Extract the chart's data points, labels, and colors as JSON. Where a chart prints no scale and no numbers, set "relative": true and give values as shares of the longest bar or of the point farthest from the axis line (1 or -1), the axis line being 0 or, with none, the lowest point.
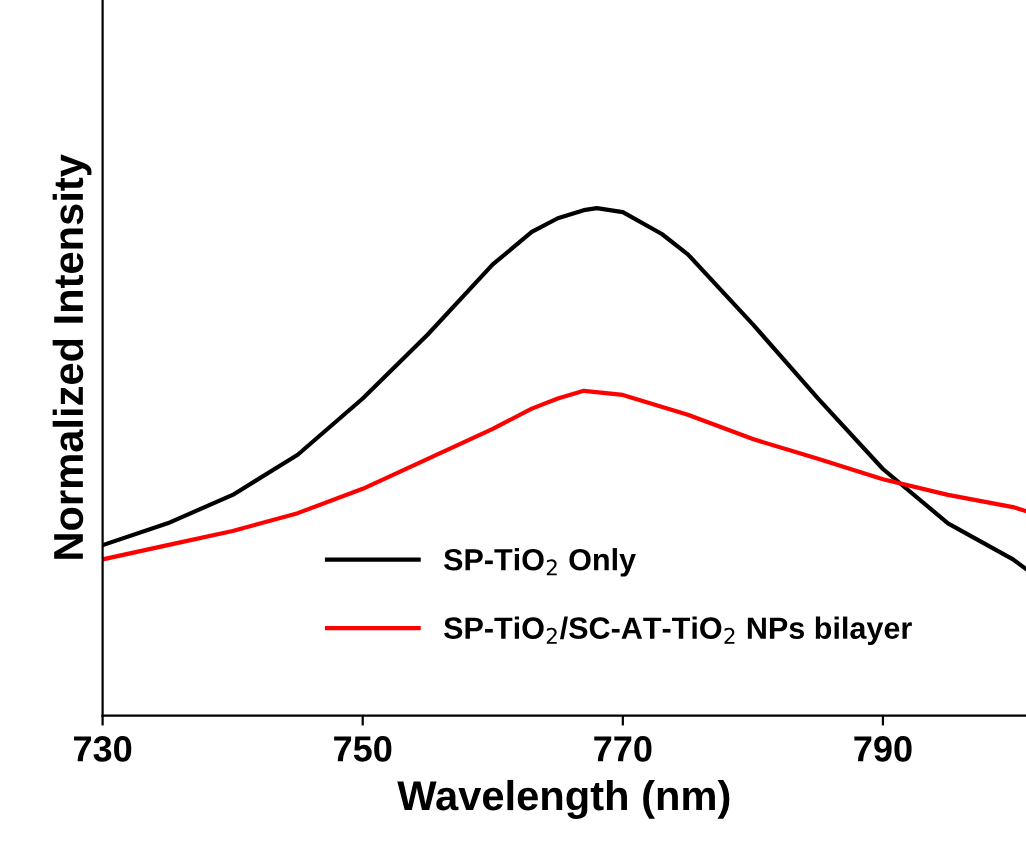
{
  "chart_data": {
    "type": "line",
    "xlabel": "Wavelength (nm)",
    "ylabel": "Normalized Intensity",
    "relative": true,
    "xlim": [
      730,
      801
    ],
    "xticks": [
      730,
      750,
      770,
      790
    ],
    "legend": "bottom",
    "grid": false,
    "marker": "none",
    "line_style": "solid",
    "series": [
      {
        "name": "SP-TiO$_{2}$ Only",
        "color": "#000000",
        "x": [
          730,
          735,
          740,
          745,
          750,
          755,
          760,
          763,
          765,
          767,
          768,
          770,
          773,
          775,
          780,
          785,
          790,
          795,
          800,
          801
        ],
        "values": [
          0.336,
          0.379,
          0.435,
          0.514,
          0.625,
          0.751,
          0.889,
          0.953,
          0.98,
          0.996,
          1.0,
          0.992,
          0.949,
          0.909,
          0.771,
          0.625,
          0.486,
          0.379,
          0.308,
          0.289
        ]
      },
      {
        "name": "SP-TiO$_{2}$/SC-AT-TiO$_{2}$ NPs bilayer",
        "color": "#ff0000",
        "x": [
          730,
          735,
          740,
          745,
          750,
          755,
          760,
          763,
          765,
          767,
          770,
          775,
          780,
          785,
          790,
          795,
          800,
          801
        ],
        "values": [
          0.308,
          0.336,
          0.364,
          0.399,
          0.447,
          0.506,
          0.565,
          0.605,
          0.625,
          0.64,
          0.632,
          0.593,
          0.545,
          0.506,
          0.466,
          0.435,
          0.411,
          0.403
        ]
      }
    ]
  }
}
